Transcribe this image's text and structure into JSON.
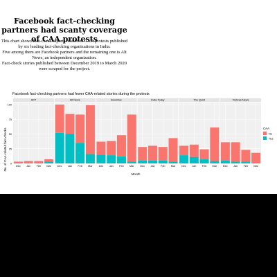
{
  "article": {
    "headline": "Facebook fact-checking partners had scanty coverage of CAA protests",
    "description": [
      "This chart shows fact-check reports related to CAA protests published by six leading fact-checking organizations in India.",
      "Five among them are Facebook partners and the remaining one is Alt News, an independent organization.",
      "Fact-check stories published between December 2019 to March 2020 were scraped for the project."
    ]
  },
  "colors": {
    "no": "#F8766D",
    "yes": "#00BFC4",
    "panel": "#F0F0F0",
    "strip": "#E4E4E4",
    "grid": "#FFFFFF"
  },
  "chart_data": {
    "type": "bar",
    "stacked": true,
    "title": "Facebook fact-checking partners had fewer CAA-related stories during the protests",
    "xlabel": "Month",
    "ylabel": "No. of CAA-related fact-checks",
    "ylim": [
      0,
      100
    ],
    "yticks": [
      0,
      25,
      50,
      75,
      100
    ],
    "categories": [
      "Dec",
      "Jan",
      "Feb",
      "Mar"
    ],
    "legend": {
      "title": "CAA",
      "position": "right",
      "entries": [
        "No",
        "Yes"
      ]
    },
    "grid": true,
    "facets": [
      {
        "name": "AFP",
        "series": [
          {
            "name": "No",
            "values": [
              2,
              3,
              3,
              4
            ]
          },
          {
            "name": "Yes",
            "values": [
              1,
              1,
              1,
              3
            ]
          }
        ]
      },
      {
        "name": "Alt News",
        "series": [
          {
            "name": "No",
            "values": [
              48,
              34,
              48,
              83
            ]
          },
          {
            "name": "Yes",
            "values": [
              52,
              50,
              35,
              16
            ]
          }
        ]
      },
      {
        "name": "Boomlive",
        "series": [
          {
            "name": "No",
            "values": [
              22,
              24,
              36,
              80
            ]
          },
          {
            "name": "Yes",
            "values": [
              15,
              14,
              12,
              3
            ]
          }
        ]
      },
      {
        "name": "India Today",
        "series": [
          {
            "name": "No",
            "values": [
              23,
              25,
              23,
              40
            ]
          },
          {
            "name": "Yes",
            "values": [
              5,
              5,
              5,
              3
            ]
          }
        ]
      },
      {
        "name": "The Quint",
        "series": [
          {
            "name": "No",
            "values": [
              16,
              21,
              17,
              57
            ]
          },
          {
            "name": "Yes",
            "values": [
              14,
              11,
              7,
              4
            ]
          }
        ]
      },
      {
        "name": "Vishvas News",
        "series": [
          {
            "name": "No",
            "values": [
              31,
              33,
              20,
              17
            ]
          },
          {
            "name": "Yes",
            "values": [
              5,
              3,
              3,
              1
            ]
          }
        ]
      }
    ]
  }
}
